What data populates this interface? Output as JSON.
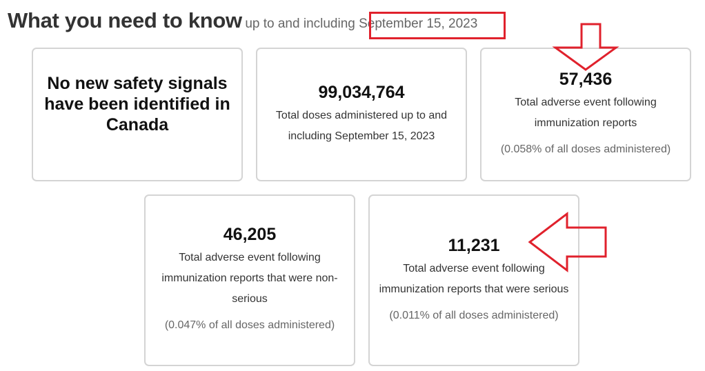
{
  "header": {
    "title": "What you need to know",
    "subtitle": "up to and including ",
    "date": "September 15, 2023"
  },
  "cards": [
    {
      "text": "No new safety signals have been identified in Canada"
    },
    {
      "value": "99,034,764",
      "label": "Total doses administered up to and including September 15, 2023"
    },
    {
      "value": "57,436",
      "label": "Total adverse event following immunization reports",
      "pct": "(0.058% of all doses administered)"
    },
    {
      "value": "46,205",
      "label": "Total adverse event following immunization reports that were non-serious",
      "pct": "(0.047% of all doses administered)"
    },
    {
      "value": "11,231",
      "label": "Total adverse event following immunization reports that were serious",
      "pct": "(0.011% of all doses administered)"
    }
  ],
  "annotations": {
    "color": "#e0212c"
  }
}
